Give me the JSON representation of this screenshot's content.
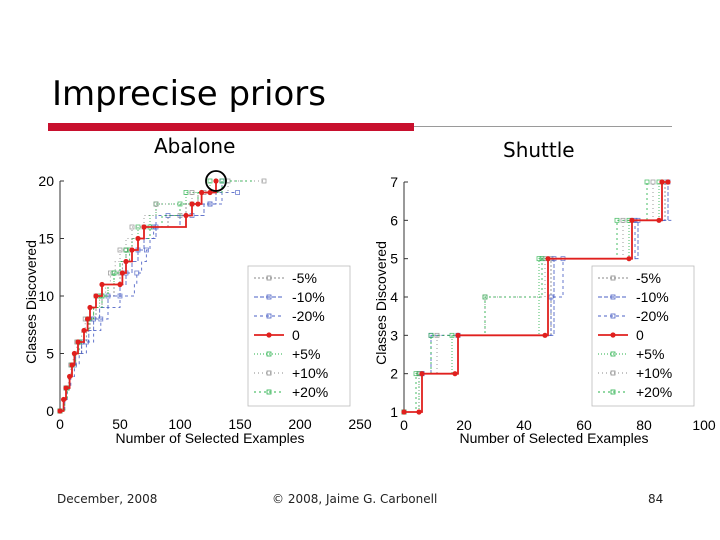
{
  "slide": {
    "title": "Imprecise priors",
    "footer_date": "December, 2008",
    "footer_copyright": "© 2008, Jaime G. Carbonell",
    "footer_page": "84"
  },
  "colors": {
    "accent_red": "#c8102e",
    "line_zero": "#e0201e",
    "line_neg": "#4a5fc4",
    "line_pos": "#27b04a",
    "line_gray": "#888888"
  },
  "chart_data": [
    {
      "type": "line",
      "title": "Abalone",
      "xlabel": "Number of Selected Examples",
      "ylabel": "Classes Discovered",
      "xlim": [
        0,
        250
      ],
      "ylim": [
        0,
        20
      ],
      "xticks": [
        "0",
        "50",
        "100",
        "150",
        "200",
        "250"
      ],
      "yticks": [
        "0",
        "5",
        "10",
        "15",
        "20"
      ],
      "legend": "bottom-right",
      "annotation": "circle around final point of series 0",
      "series": [
        {
          "name": "-5%",
          "color": "#888888",
          "dash": "2,2",
          "x": [
            0,
            3,
            5,
            8,
            10,
            13,
            18,
            22,
            25,
            30,
            35,
            45,
            50,
            52,
            55,
            60,
            70,
            90,
            100,
            105,
            110,
            115,
            120,
            130
          ],
          "y": [
            0,
            1,
            2,
            3,
            4,
            5,
            6,
            7,
            8,
            9,
            10,
            11,
            12,
            13,
            14,
            15,
            16,
            17,
            17,
            18,
            18,
            19,
            19,
            20
          ]
        },
        {
          "name": "-10%",
          "color": "#4a5fc4",
          "dash": "4,2",
          "x": [
            0,
            3,
            5,
            8,
            10,
            13,
            18,
            24,
            28,
            33,
            40,
            50,
            55,
            60,
            65,
            70,
            80,
            100,
            110,
            120,
            125,
            130,
            135
          ],
          "y": [
            0,
            1,
            2,
            3,
            4,
            5,
            6,
            7,
            8,
            9,
            10,
            11,
            12,
            13,
            14,
            15,
            16,
            17,
            17,
            18,
            18,
            19,
            20
          ]
        },
        {
          "name": "-20%",
          "color": "#4a5fc4",
          "dash": "3,3",
          "x": [
            0,
            4,
            6,
            9,
            12,
            16,
            22,
            28,
            34,
            40,
            50,
            62,
            64,
            68,
            72,
            75,
            78,
            80,
            90,
            110,
            125,
            135,
            148
          ],
          "y": [
            0,
            1,
            2,
            3,
            4,
            5,
            6,
            7,
            8,
            9,
            10,
            11,
            12,
            13,
            14,
            15,
            16,
            17,
            17,
            18,
            18,
            19,
            19
          ]
        },
        {
          "name": "0",
          "color": "#e0201e",
          "dash": "",
          "x": [
            0,
            3,
            5,
            8,
            10,
            12,
            15,
            20,
            23,
            25,
            30,
            35,
            50,
            52,
            55,
            60,
            65,
            70,
            105,
            110,
            115,
            118,
            125,
            130
          ],
          "y": [
            0,
            1,
            2,
            3,
            4,
            5,
            6,
            7,
            8,
            9,
            10,
            11,
            11,
            12,
            13,
            14,
            15,
            16,
            17,
            18,
            18,
            19,
            19,
            20
          ]
        },
        {
          "name": "+5%",
          "color": "#27b04a",
          "dash": "1,2",
          "x": [
            0,
            3,
            5,
            8,
            10,
            12,
            15,
            20,
            23,
            28,
            33,
            40,
            45,
            50,
            55,
            60,
            65,
            75,
            80,
            95,
            105,
            115,
            125
          ],
          "y": [
            0,
            1,
            2,
            3,
            4,
            5,
            6,
            7,
            8,
            9,
            10,
            11,
            12,
            13,
            14,
            15,
            16,
            17,
            18,
            18,
            19,
            19,
            20
          ]
        },
        {
          "name": "+10%",
          "color": "#888888",
          "dash": "1,3",
          "x": [
            0,
            3,
            5,
            7,
            9,
            11,
            14,
            18,
            21,
            25,
            30,
            38,
            42,
            46,
            50,
            55,
            60,
            70,
            80,
            95,
            110,
            120,
            140,
            150,
            170
          ],
          "y": [
            0,
            1,
            2,
            3,
            4,
            5,
            6,
            7,
            8,
            9,
            10,
            11,
            12,
            13,
            14,
            15,
            16,
            17,
            18,
            18,
            19,
            19,
            20,
            20,
            20
          ]
        },
        {
          "name": "+20%",
          "color": "#27b04a",
          "dash": "2,3",
          "x": [
            0,
            4,
            6,
            8,
            10,
            13,
            16,
            20,
            24,
            28,
            35,
            40,
            45,
            50,
            58,
            65,
            75,
            85,
            100,
            115,
            135,
            160
          ],
          "y": [
            0,
            1,
            2,
            3,
            4,
            5,
            6,
            7,
            8,
            9,
            10,
            11,
            12,
            13,
            14,
            15,
            16,
            17,
            18,
            19,
            20,
            20
          ]
        }
      ]
    },
    {
      "type": "line",
      "title": "Shuttle",
      "xlabel": "Number of Selected Examples",
      "ylabel": "Classes Discovered",
      "xlim": [
        0,
        100
      ],
      "ylim": [
        1,
        7
      ],
      "xticks": [
        "0",
        "20",
        "40",
        "60",
        "80",
        "100"
      ],
      "yticks": [
        "1",
        "2",
        "3",
        "4",
        "5",
        "6",
        "7"
      ],
      "legend": "bottom-right",
      "series": [
        {
          "name": "-5%",
          "color": "#888888",
          "dash": "2,2",
          "x": [
            0,
            5,
            6,
            17,
            18,
            48,
            49,
            75,
            76,
            86,
            87
          ],
          "y": [
            1,
            1,
            2,
            2,
            3,
            3,
            5,
            5,
            6,
            6,
            7
          ]
        },
        {
          "name": "-10%",
          "color": "#4a5fc4",
          "dash": "4,2",
          "x": [
            0,
            5,
            6,
            17,
            18,
            49,
            50,
            77,
            78,
            87,
            88
          ],
          "y": [
            1,
            1,
            2,
            2,
            3,
            3,
            5,
            5,
            6,
            6,
            7
          ]
        },
        {
          "name": "-20%",
          "color": "#4a5fc4",
          "dash": "3,3",
          "x": [
            0,
            5,
            6,
            8,
            9,
            48,
            49,
            52,
            53,
            76,
            77,
            90
          ],
          "y": [
            1,
            1,
            2,
            2,
            3,
            3,
            4,
            4,
            5,
            5,
            6,
            6
          ]
        },
        {
          "name": "0",
          "color": "#e0201e",
          "dash": "",
          "x": [
            0,
            5,
            6,
            17,
            18,
            47,
            48,
            75,
            76,
            85,
            86,
            88
          ],
          "y": [
            1,
            1,
            2,
            2,
            3,
            3,
            5,
            5,
            6,
            6,
            7,
            7
          ]
        },
        {
          "name": "+5%",
          "color": "#27b04a",
          "dash": "1,2",
          "x": [
            0,
            4,
            5,
            15,
            16,
            44,
            45,
            74,
            75,
            84,
            85
          ],
          "y": [
            1,
            1,
            2,
            2,
            3,
            3,
            5,
            5,
            6,
            6,
            7
          ]
        },
        {
          "name": "+10%",
          "color": "#888888",
          "dash": "1,3",
          "x": [
            0,
            4,
            5,
            10,
            11,
            26,
            27,
            46,
            47,
            72,
            73,
            82,
            83
          ],
          "y": [
            1,
            1,
            2,
            2,
            3,
            3,
            4,
            4,
            5,
            5,
            6,
            6,
            7
          ]
        },
        {
          "name": "+20%",
          "color": "#27b04a",
          "dash": "2,3",
          "x": [
            0,
            3,
            4,
            8,
            9,
            26,
            27,
            45,
            46,
            70,
            71,
            80,
            81
          ],
          "y": [
            1,
            1,
            2,
            2,
            3,
            3,
            4,
            4,
            5,
            5,
            6,
            6,
            7
          ]
        }
      ]
    }
  ]
}
